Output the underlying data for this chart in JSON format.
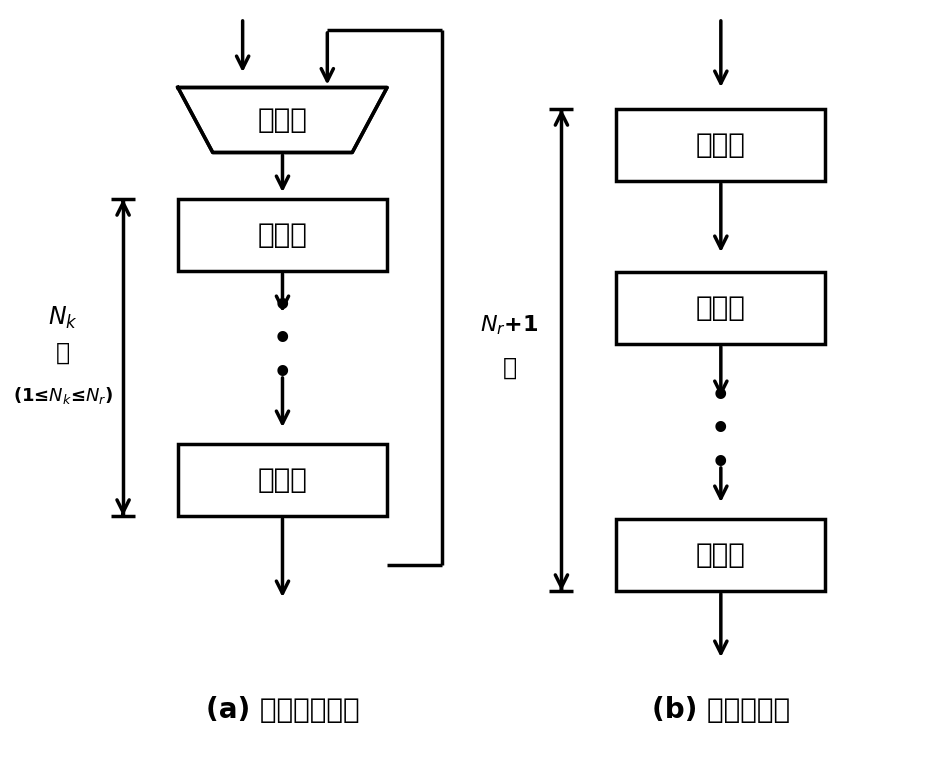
{
  "bg_color": "#ffffff",
  "line_color": "#000000",
  "text_color": "#000000",
  "selector_label": "选择器",
  "round_label": "轮变换",
  "title_a": "(a) 循环展开结构",
  "title_b": "(b) 全展开结构",
  "nk_line1": "$N_k$",
  "nk_line2": "轮",
  "nk_line3": "(1≤$N_k$≤$N_r$)",
  "nr_line1": "$N_r$+1",
  "nr_line2": "轮",
  "font_size_chinese": 20,
  "font_size_title": 20,
  "font_size_annot": 16,
  "lw": 2.5
}
